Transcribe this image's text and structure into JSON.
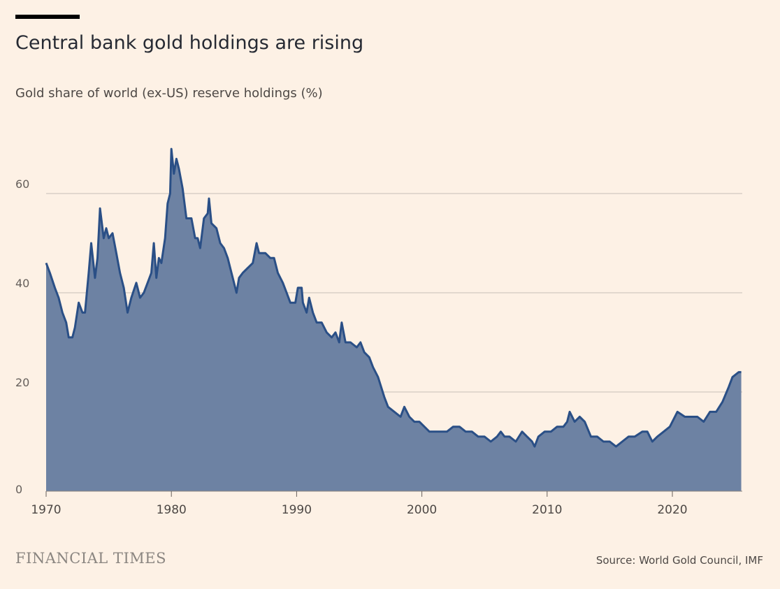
{
  "header": {
    "title": "Central bank gold holdings are rising",
    "subtitle": "Gold share of world (ex-US) reserve holdings (%)"
  },
  "footer": {
    "logo": "FINANCIAL TIMES",
    "source": "Source: World Gold Council, IMF"
  },
  "colors": {
    "fill": "#6d82a3",
    "line": "#2a4f86",
    "grid": "#d9d0c6",
    "background": "#fdf1e5"
  },
  "chart_data": {
    "type": "area",
    "title": "Central bank gold holdings are rising",
    "ylabel": "Gold share of world (ex-US) reserve holdings (%)",
    "xlim": [
      1970,
      2025.6
    ],
    "ylim": [
      0,
      70
    ],
    "xticks": [
      1970,
      1980,
      1990,
      2000,
      2010,
      2020
    ],
    "yticks": [
      0,
      20,
      40,
      60
    ],
    "grid": true,
    "x": [
      1970.0,
      1970.3,
      1970.7,
      1971.0,
      1971.3,
      1971.6,
      1971.8,
      1972.1,
      1972.3,
      1972.6,
      1972.9,
      1973.1,
      1973.4,
      1973.6,
      1973.9,
      1974.1,
      1974.3,
      1974.6,
      1974.8,
      1975.0,
      1975.3,
      1975.6,
      1975.9,
      1976.2,
      1976.5,
      1976.8,
      1977.2,
      1977.5,
      1977.8,
      1978.1,
      1978.4,
      1978.6,
      1978.8,
      1979.0,
      1979.2,
      1979.5,
      1979.7,
      1979.9,
      1980.0,
      1980.2,
      1980.4,
      1980.6,
      1980.9,
      1981.2,
      1981.6,
      1981.9,
      1982.1,
      1982.3,
      1982.6,
      1982.9,
      1983.0,
      1983.2,
      1983.6,
      1983.9,
      1984.2,
      1984.5,
      1984.8,
      1985.0,
      1985.2,
      1985.4,
      1985.7,
      1986.1,
      1986.5,
      1986.8,
      1987.0,
      1987.5,
      1987.9,
      1988.2,
      1988.5,
      1988.9,
      1989.2,
      1989.5,
      1989.9,
      1990.1,
      1990.4,
      1990.5,
      1990.8,
      1991.0,
      1991.3,
      1991.6,
      1992.0,
      1992.4,
      1992.8,
      1993.1,
      1993.4,
      1993.6,
      1993.9,
      1994.3,
      1994.8,
      1995.1,
      1995.4,
      1995.8,
      1996.1,
      1996.5,
      1997.0,
      1997.3,
      1997.8,
      1998.3,
      1998.6,
      1999.0,
      1999.4,
      1999.8,
      2000.2,
      2000.6,
      2001.3,
      2002.0,
      2002.5,
      2003.0,
      2003.5,
      2004.0,
      2004.5,
      2005.0,
      2005.5,
      2006.0,
      2006.3,
      2006.6,
      2007.0,
      2007.5,
      2008.0,
      2008.4,
      2008.8,
      2009.0,
      2009.3,
      2009.8,
      2010.3,
      2010.8,
      2011.3,
      2011.6,
      2011.8,
      2012.2,
      2012.6,
      2013.0,
      2013.5,
      2014.0,
      2014.5,
      2015.0,
      2015.5,
      2016.0,
      2016.5,
      2017.0,
      2017.6,
      2018.0,
      2018.4,
      2018.8,
      2019.3,
      2019.8,
      2020.4,
      2021.0,
      2021.6,
      2022.0,
      2022.5,
      2023.0,
      2023.5,
      2024.0,
      2024.5,
      2024.8,
      2025.3,
      2025.5
    ],
    "values": [
      46,
      44,
      41,
      39,
      36,
      34,
      31,
      31,
      33,
      38,
      36,
      36,
      44,
      50,
      43,
      47,
      57,
      51,
      53,
      51,
      52,
      48,
      44,
      41,
      36,
      39,
      42,
      39,
      40,
      42,
      44,
      50,
      43,
      47,
      46,
      51,
      58,
      60,
      69,
      64,
      67,
      65,
      61,
      55,
      55,
      51,
      51,
      49,
      55,
      56,
      59,
      54,
      53,
      50,
      49,
      47,
      44,
      42,
      40,
      43,
      44,
      45,
      46,
      50,
      48,
      48,
      47,
      47,
      44,
      42,
      40,
      38,
      38,
      41,
      41,
      38,
      36,
      39,
      36,
      34,
      34,
      32,
      31,
      32,
      30,
      34,
      30,
      30,
      29,
      30,
      28,
      27,
      25,
      23,
      19,
      17,
      16,
      15,
      17,
      15,
      14,
      14,
      13,
      12,
      12,
      12,
      13,
      13,
      12,
      12,
      11,
      11,
      10,
      11,
      12,
      11,
      11,
      10,
      12,
      11,
      10,
      9,
      11,
      12,
      12,
      13,
      13,
      14,
      16,
      14,
      15,
      14,
      11,
      11,
      10,
      10,
      9,
      10,
      11,
      11,
      12,
      12,
      10,
      11,
      12,
      13,
      16,
      15,
      15,
      15,
      14,
      16,
      16,
      18,
      21,
      23,
      24,
      24
    ]
  }
}
